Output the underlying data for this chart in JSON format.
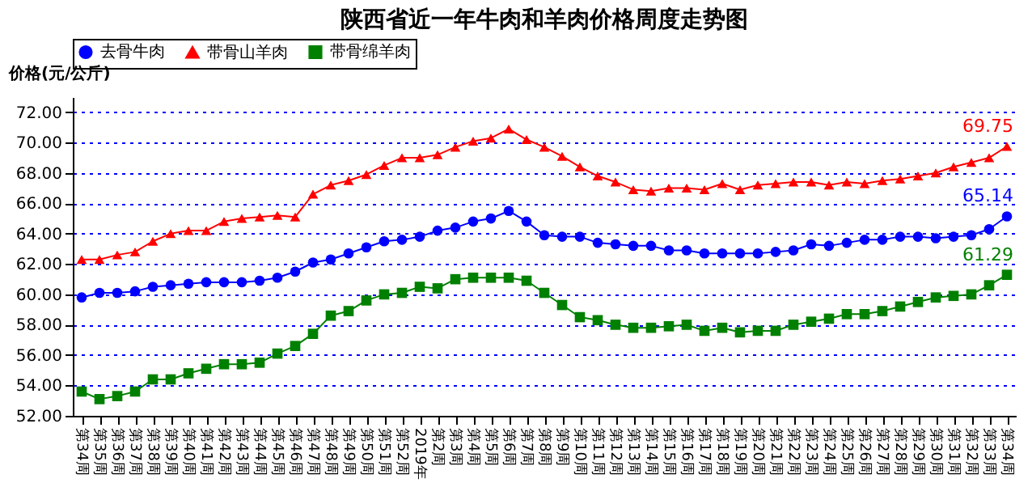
{
  "chart_data": {
    "type": "line",
    "title": "陕西省近一年牛肉和羊肉价格周度走势图",
    "ylabel": "价格(元/公斤)",
    "categories": [
      "第34周",
      "第35周",
      "第36周",
      "第37周",
      "第38周",
      "第39周",
      "第40周",
      "第41周",
      "第42周",
      "第43周",
      "第44周",
      "第45周",
      "第46周",
      "第47周",
      "第48周",
      "第49周",
      "第50周",
      "第51周",
      "第52周",
      "2019年",
      "第2周",
      "第3周",
      "第4周",
      "第5周",
      "第6周",
      "第7周",
      "第8周",
      "第9周",
      "第10周",
      "第11周",
      "第12周",
      "第13周",
      "第14周",
      "第15周",
      "第16周",
      "第17周",
      "第18周",
      "第19周",
      "第20周",
      "第21周",
      "第22周",
      "第23周",
      "第24周",
      "第25周",
      "第26周",
      "第27周",
      "第28周",
      "第29周",
      "第30周",
      "第31周",
      "第32周",
      "第33周",
      "第34周"
    ],
    "series": [
      {
        "name": "去骨牛肉",
        "color": "#0000ff",
        "marker": "circle",
        "values": [
          59.8,
          60.1,
          60.1,
          60.2,
          60.5,
          60.6,
          60.7,
          60.8,
          60.8,
          60.8,
          60.9,
          61.1,
          61.5,
          62.1,
          62.3,
          62.7,
          63.1,
          63.5,
          63.6,
          63.8,
          64.2,
          64.4,
          64.8,
          65.0,
          65.5,
          64.8,
          63.9,
          63.8,
          63.8,
          63.4,
          63.3,
          63.2,
          63.2,
          62.9,
          62.9,
          62.7,
          62.7,
          62.7,
          62.7,
          62.8,
          62.9,
          63.3,
          63.2,
          63.4,
          63.6,
          63.6,
          63.8,
          63.8,
          63.7,
          63.8,
          63.9,
          64.3,
          65.14
        ],
        "value_labels": [
          null,
          null,
          null,
          null,
          null,
          null,
          null,
          null,
          null,
          null,
          null,
          null,
          null,
          null,
          null,
          null,
          null,
          null,
          null,
          null,
          null,
          null,
          null,
          null,
          null,
          null,
          null,
          null,
          null,
          null,
          null,
          null,
          null,
          null,
          null,
          null,
          null,
          null,
          null,
          null,
          null,
          null,
          null,
          null,
          null,
          null,
          null,
          null,
          null,
          null,
          null,
          null,
          "65.14"
        ]
      },
      {
        "name": "带骨山羊肉",
        "color": "#ff0000",
        "marker": "triangle",
        "values": [
          62.3,
          62.3,
          62.6,
          62.8,
          63.5,
          64.0,
          64.2,
          64.2,
          64.8,
          65.0,
          65.1,
          65.2,
          65.1,
          66.6,
          67.2,
          67.5,
          67.9,
          68.5,
          69.0,
          69.0,
          69.2,
          69.7,
          70.1,
          70.3,
          70.9,
          70.2,
          69.7,
          69.1,
          68.4,
          67.8,
          67.4,
          66.9,
          66.8,
          67.0,
          67.0,
          66.9,
          67.3,
          66.9,
          67.2,
          67.3,
          67.4,
          67.4,
          67.2,
          67.4,
          67.3,
          67.5,
          67.6,
          67.8,
          68.0,
          68.4,
          68.7,
          69.0,
          69.75
        ],
        "value_labels": [
          null,
          null,
          null,
          null,
          null,
          null,
          null,
          null,
          null,
          null,
          null,
          null,
          null,
          null,
          null,
          null,
          null,
          null,
          null,
          null,
          null,
          null,
          null,
          null,
          null,
          null,
          null,
          null,
          null,
          null,
          null,
          null,
          null,
          null,
          null,
          null,
          null,
          null,
          null,
          null,
          null,
          null,
          null,
          null,
          null,
          null,
          null,
          null,
          null,
          null,
          null,
          null,
          "69.75"
        ]
      },
      {
        "name": "带骨绵羊肉",
        "color": "#008000",
        "marker": "square",
        "values": [
          53.6,
          53.1,
          53.3,
          53.6,
          54.4,
          54.4,
          54.8,
          55.1,
          55.4,
          55.4,
          55.5,
          56.1,
          56.6,
          57.4,
          58.6,
          58.9,
          59.6,
          60.0,
          60.1,
          60.5,
          60.4,
          61.0,
          61.1,
          61.1,
          61.1,
          60.9,
          60.1,
          59.3,
          58.5,
          58.3,
          58.0,
          57.8,
          57.8,
          57.9,
          58.0,
          57.6,
          57.8,
          57.5,
          57.6,
          57.6,
          58.0,
          58.2,
          58.4,
          58.7,
          58.7,
          58.9,
          59.2,
          59.5,
          59.8,
          59.9,
          60.0,
          60.6,
          61.29
        ],
        "value_labels": [
          null,
          null,
          null,
          null,
          null,
          null,
          null,
          null,
          null,
          null,
          null,
          null,
          null,
          null,
          null,
          null,
          null,
          null,
          null,
          null,
          null,
          null,
          null,
          null,
          null,
          null,
          null,
          null,
          null,
          null,
          null,
          null,
          null,
          null,
          null,
          null,
          null,
          null,
          null,
          null,
          null,
          null,
          null,
          null,
          null,
          null,
          null,
          null,
          null,
          null,
          null,
          null,
          "61.29"
        ]
      }
    ],
    "ylim": [
      52,
      73
    ],
    "yticks": [
      {
        "value": 52,
        "label": "52.00"
      },
      {
        "value": 54,
        "label": "54.00"
      },
      {
        "value": 56,
        "label": "56.00"
      },
      {
        "value": 58,
        "label": "58.00"
      },
      {
        "value": 60,
        "label": "60.00"
      },
      {
        "value": 62,
        "label": "62.00"
      },
      {
        "value": 64,
        "label": "64.00"
      },
      {
        "value": 66,
        "label": "66.00"
      },
      {
        "value": 68,
        "label": "68.00"
      },
      {
        "value": 70,
        "label": "70.00"
      },
      {
        "value": 72,
        "label": "72.00"
      }
    ],
    "grid": "y",
    "legend": "top",
    "line_style": "solid"
  }
}
